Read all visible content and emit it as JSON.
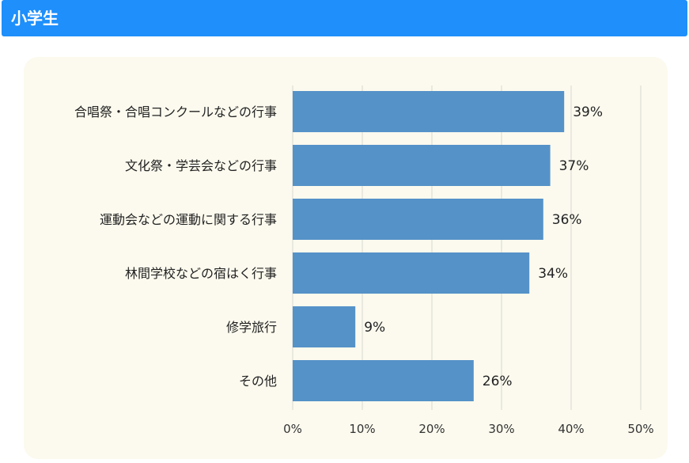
{
  "header": {
    "title": "小学生"
  },
  "colors": {
    "header_bg": "#1e8ffb",
    "panel_bg": "#fcfaee",
    "bar": "#5592c8",
    "grid": "#d9d8d0"
  },
  "chart_data": {
    "type": "bar",
    "orientation": "horizontal",
    "categories": [
      "合唱祭・合唱コンクールなどの行事",
      "文化祭・学芸会などの行事",
      "運動会などの運動に関する行事",
      "林間学校などの宿はく行事",
      "修学旅行",
      "その他"
    ],
    "values": [
      39,
      37,
      36,
      34,
      9,
      26
    ],
    "value_labels": [
      "39%",
      "37%",
      "36%",
      "34%",
      "9%",
      "26%"
    ],
    "xlim": [
      0,
      50
    ],
    "ticks": [
      "0%",
      "10%",
      "20%",
      "30%",
      "40%",
      "50%"
    ],
    "tick_values": [
      0,
      10,
      20,
      30,
      40,
      50
    ],
    "grid": true
  }
}
